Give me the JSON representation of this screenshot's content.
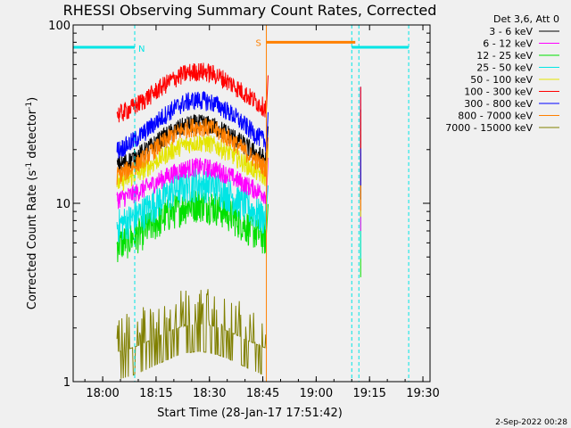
{
  "chart_data": {
    "type": "line",
    "title": "RHESSI Observing Summary Count Rates, Corrected",
    "xlabel": "Start Time (28-Jan-17 17:51:42)",
    "ylabel": "Corrected Count Rate (s⁻¹ detector⁻¹)",
    "ylabel_parts": {
      "main": "Corrected Count Rate (s",
      "exp1": "-1",
      "mid": " detector",
      "exp2": "-1",
      "end": ")"
    },
    "yscale": "log",
    "ylim": [
      1,
      100
    ],
    "xlim": [
      "17:51:42",
      "19:32:00"
    ],
    "x_ticks": [
      "18:00",
      "18:15",
      "18:30",
      "18:45",
      "19:00",
      "19:15",
      "19:30"
    ],
    "y_ticks": [
      "1",
      "10",
      "100"
    ],
    "legend_header": "Det 3,6, Att 0",
    "timestamp": "2-Sep-2022 00:28",
    "annotations": {
      "night_label": "N",
      "saa_label": "S",
      "night_periods": [
        [
          "17:51:42",
          "18:09:00"
        ],
        [
          "19:10:00",
          "19:26:00"
        ]
      ],
      "saa_period": [
        "18:46:00",
        "19:11:00"
      ],
      "vlines": [
        "18:09:00",
        "19:10:00",
        "19:12:00",
        "19:26:00"
      ],
      "night_color": "#00e5e5",
      "saa_color": "#ff8000"
    },
    "series": [
      {
        "name": "3 - 6 keV",
        "color": "#000000",
        "base": 15,
        "peak": 28
      },
      {
        "name": "6 - 12 keV",
        "color": "#ff00ff",
        "base": 10,
        "peak": 16
      },
      {
        "name": "12 - 25 keV",
        "color": "#00e000",
        "base": 5.5,
        "peak": 10
      },
      {
        "name": "25 - 50 keV",
        "color": "#00e5e5",
        "base": 7,
        "peak": 13
      },
      {
        "name": "50 - 100 keV",
        "color": "#e5e500",
        "base": 12,
        "peak": 22
      },
      {
        "name": "100 - 300 keV",
        "color": "#ff0000",
        "base": 29,
        "peak": 55
      },
      {
        "name": "300 - 800 keV",
        "color": "#0000ff",
        "base": 18,
        "peak": 38
      },
      {
        "name": "800 - 7000 keV",
        "color": "#ff8000",
        "base": 13,
        "peak": 27
      },
      {
        "name": "7000 - 15000 keV",
        "color": "#808000",
        "base": 1.3,
        "peak": 2.0
      }
    ]
  }
}
